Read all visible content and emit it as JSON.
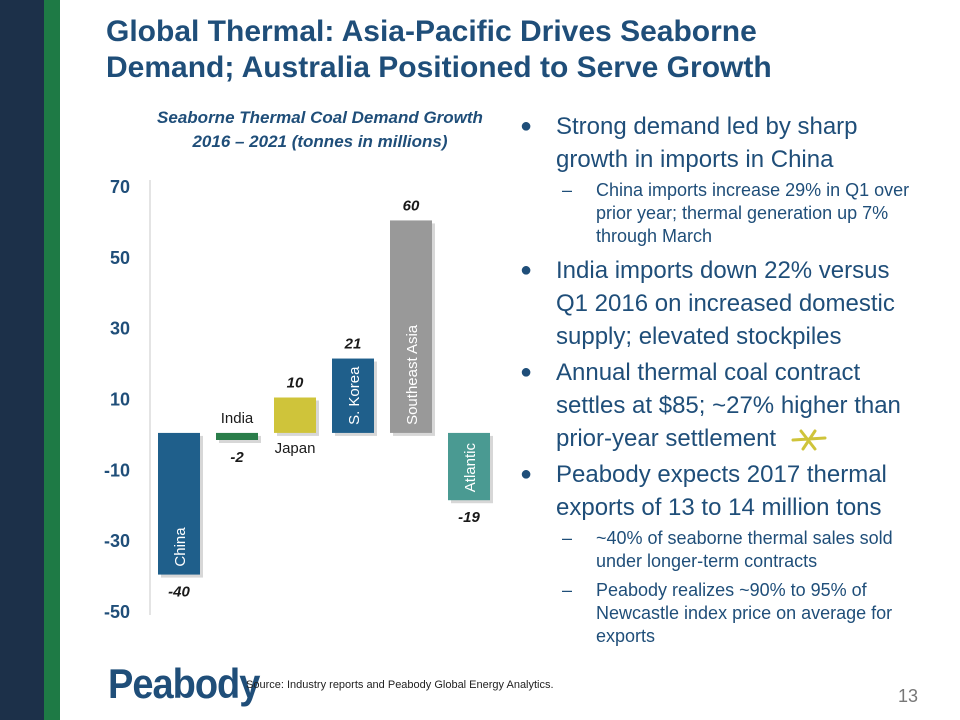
{
  "slide": {
    "title_line1": "Global Thermal: Asia-Pacific Drives Seaborne",
    "title_line2": "Demand; Australia Positioned to Serve Growth",
    "source": "Source: Industry reports and Peabody Global Energy Analytics.",
    "page_number": "13",
    "logo_text": "Peabody"
  },
  "chart_data": {
    "type": "bar",
    "title_line1": "Seaborne Thermal Coal Demand Growth",
    "title_line2": "2016 – 2021 (tonnes in millions)",
    "categories": [
      "China",
      "India",
      "Japan",
      "S. Korea",
      "Southeast Asia",
      "Atlantic"
    ],
    "values": [
      -40,
      -2,
      10,
      21,
      60,
      -19
    ],
    "data_labels": [
      "-40",
      "-2",
      "10",
      "21",
      "60",
      "-19"
    ],
    "colors": [
      "#1f5f8b",
      "#2a7d4a",
      "#cfc43a",
      "#1f5f8b",
      "#999999",
      "#4a9a92"
    ],
    "yticks": [
      70,
      50,
      30,
      10,
      -10,
      -30,
      -50
    ],
    "ylim": [
      -50,
      70
    ]
  },
  "bullets": [
    {
      "text": "Strong demand led by sharp growth in imports in China",
      "subs": [
        "China imports increase 29% in Q1 over prior year; thermal generation up 7% through March"
      ]
    },
    {
      "text": "India imports down 22% versus Q1 2016 on increased domestic supply; elevated stockpiles",
      "subs": []
    },
    {
      "text": "Annual thermal coal contract settles at $85; ~27% higher than prior-year settlement",
      "subs": []
    },
    {
      "text": "Peabody expects 2017 thermal exports of 13 to 14 million tons",
      "subs": [
        "~40% of seaborne thermal sales sold under longer-term contracts",
        "Peabody realizes ~90% to 95% of Newcastle index price on average for exports"
      ]
    }
  ],
  "markers": {
    "bullet": "●",
    "dash": "–"
  },
  "accent_color": "#1f4e79"
}
